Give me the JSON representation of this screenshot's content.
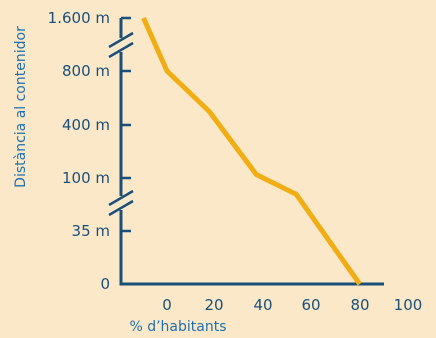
{
  "chart_data": {
    "type": "line",
    "ylabel": "Distància al contenidor",
    "xlabel": "% d’habitants",
    "x_ticks": [
      "0",
      "20",
      "40",
      "60",
      "80",
      "100"
    ],
    "y_ticks": [
      "0",
      "35 m",
      "100 m",
      "400 m",
      "800 m",
      "1.600 m"
    ],
    "y_scale": "categorical-broken",
    "axis_breaks": [
      "between 800 m and 1.600 m",
      "between 35 m and 100 m"
    ],
    "series": [
      {
        "color": "#f0ad14",
        "points": [
          {
            "x": -10,
            "y": "1.600 m"
          },
          {
            "x": 0,
            "y": "800 m"
          },
          {
            "x": 18,
            "y": 500
          },
          {
            "x": 38,
            "y": 120
          },
          {
            "x": 55,
            "y": 80
          },
          {
            "x": 82,
            "y": "0"
          }
        ]
      }
    ],
    "colors": {
      "axis": "#1b4f7a",
      "line": "#f0ad14",
      "background": "#fbe8c8"
    },
    "grid": false,
    "legend": "none"
  }
}
